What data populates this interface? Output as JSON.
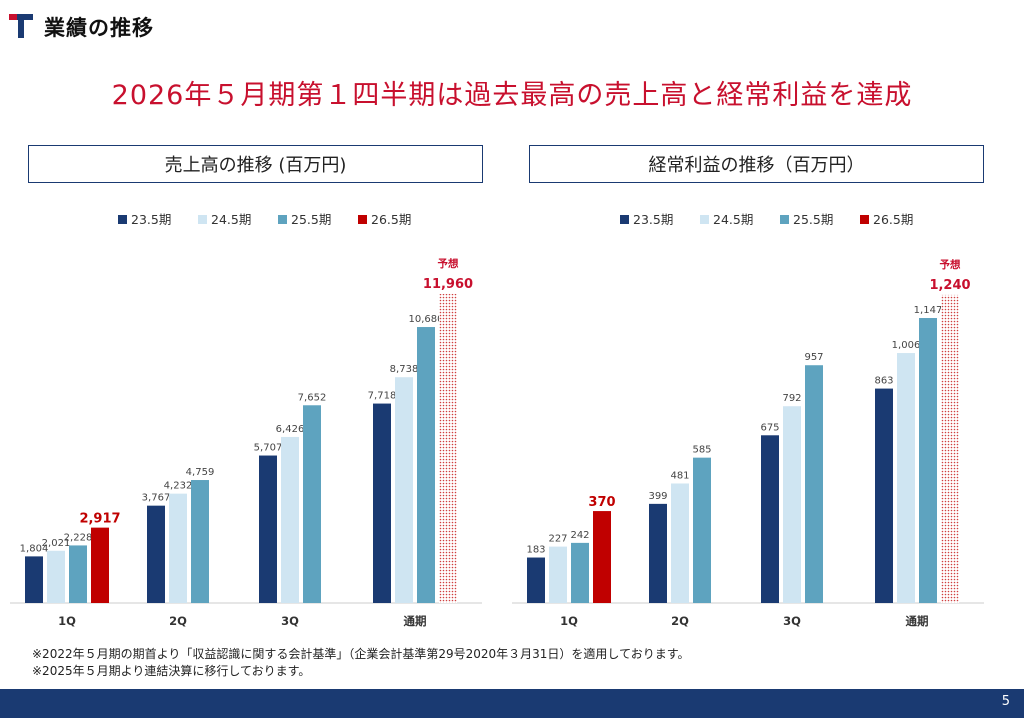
{
  "header": {
    "title": "業績の推移"
  },
  "headline": "2026年５月期第１四半期は過去最高の売上高と経常利益を達成",
  "colors": {
    "s23": "#1a3a72",
    "s24": "#cfe5f2",
    "s25": "#5ea3bf",
    "s26": "#c00000",
    "accent": "#c8102e"
  },
  "forecast_label": "予想",
  "chart_data": [
    {
      "type": "bar",
      "title": "売上高の推移 (百万円)",
      "categories": [
        "1Q",
        "2Q",
        "3Q",
        "通期"
      ],
      "series": [
        {
          "name": "23.5期",
          "values": [
            1804,
            3767,
            5707,
            7718
          ]
        },
        {
          "name": "24.5期",
          "values": [
            2021,
            4232,
            6426,
            8738
          ]
        },
        {
          "name": "25.5期",
          "values": [
            2228,
            4759,
            7652,
            10680
          ]
        },
        {
          "name": "26.5期",
          "values": [
            2917,
            null,
            null,
            null
          ]
        }
      ],
      "forecast": {
        "category": "通期",
        "value": 11960,
        "label": "予想"
      },
      "value_labels": {
        "23.5期": [
          "1,804",
          "3,767",
          "5,707",
          "7,718"
        ],
        "24.5期": [
          "2,021",
          "4,232",
          "6,426",
          "8,738"
        ],
        "25.5期": [
          "2,228",
          "4,759",
          "7,652",
          "10,680"
        ],
        "26.5期": [
          "2,917",
          "",
          "",
          ""
        ],
        "forecast": "11,960"
      },
      "ylim": [
        0,
        12500
      ]
    },
    {
      "type": "bar",
      "title": "経常利益の推移（百万円）",
      "categories": [
        "1Q",
        "2Q",
        "3Q",
        "通期"
      ],
      "series": [
        {
          "name": "23.5期",
          "values": [
            183,
            399,
            675,
            863
          ]
        },
        {
          "name": "24.5期",
          "values": [
            227,
            481,
            792,
            1006
          ]
        },
        {
          "name": "25.5期",
          "values": [
            242,
            585,
            957,
            1147
          ]
        },
        {
          "name": "26.5期",
          "values": [
            370,
            null,
            null,
            null
          ]
        }
      ],
      "forecast": {
        "category": "通期",
        "value": 1240,
        "label": "予想"
      },
      "value_labels": {
        "23.5期": [
          "183",
          "399",
          "675",
          "863"
        ],
        "24.5期": [
          "227",
          "481",
          "792",
          "1,006"
        ],
        "25.5期": [
          "242",
          "585",
          "957",
          "1,147"
        ],
        "26.5期": [
          "370",
          "",
          "",
          ""
        ],
        "forecast": "1,240"
      },
      "ylim": [
        0,
        1300
      ]
    }
  ],
  "footnotes": [
    "※2022年５月期の期首より「収益認識に関する会計基準」（企業会計基準第29号2020年３月31日）を適用しております。",
    "※2025年５月期より連結決算に移行しております。"
  ],
  "page_number": "5"
}
